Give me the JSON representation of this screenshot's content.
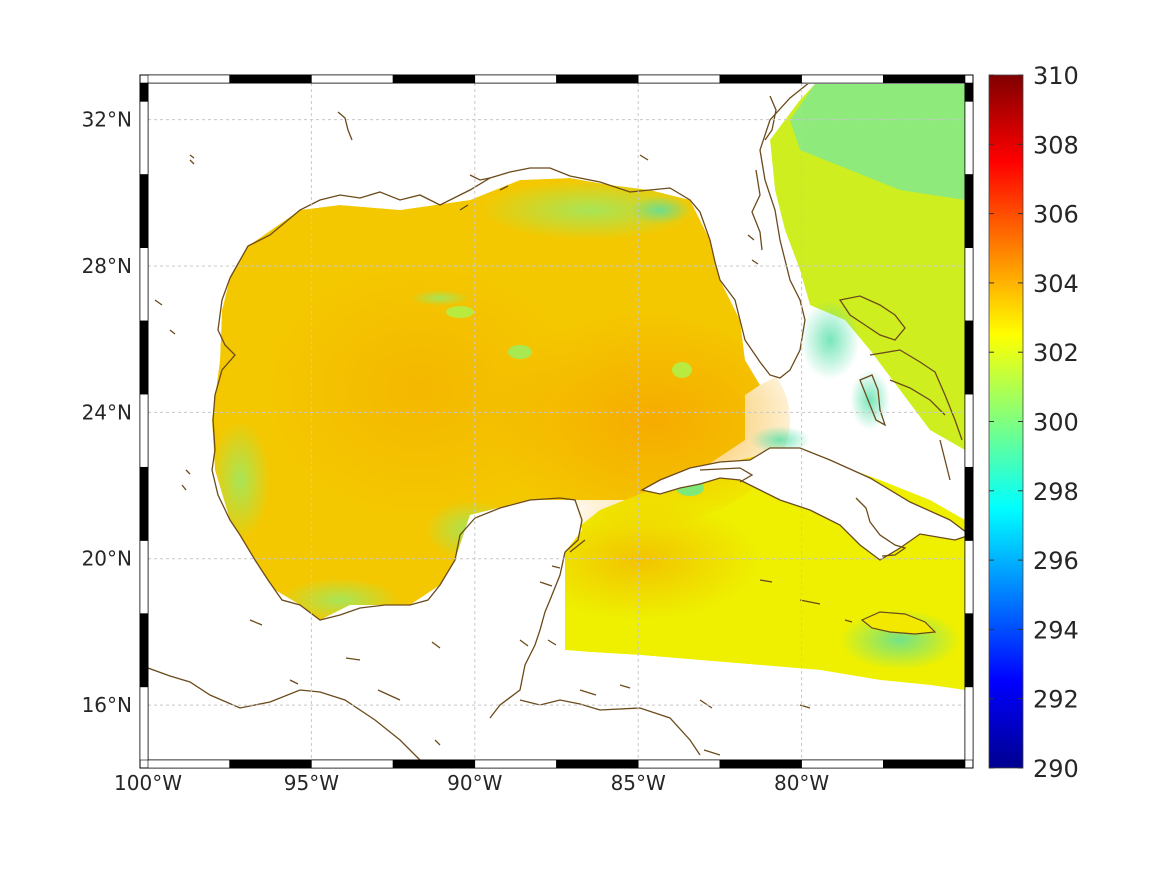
{
  "map": {
    "lat_labels": [
      {
        "lat": 32,
        "label": "32°N"
      },
      {
        "lat": 28,
        "label": "28°N"
      },
      {
        "lat": 24,
        "label": "24°N"
      },
      {
        "lat": 20,
        "label": "20°N"
      },
      {
        "lat": 16,
        "label": "16°N"
      }
    ],
    "lon_labels": [
      {
        "lon": -100,
        "label": "100°W"
      },
      {
        "lon": -95,
        "label": "95°W"
      },
      {
        "lon": -90,
        "label": "90°W"
      },
      {
        "lon": -85,
        "label": "85°W"
      },
      {
        "lon": -80,
        "label": "80°W"
      }
    ],
    "extent": {
      "lon_min": -100,
      "lon_max": -75,
      "lat_min": 14.5,
      "lat_max": 33
    },
    "grid": true,
    "coast_color": "#6b4a1b",
    "colorbar": {
      "ticks": [
        "310",
        "308",
        "306",
        "304",
        "302",
        "300",
        "298",
        "296",
        "294",
        "292",
        "290"
      ],
      "min": 290,
      "max": 310,
      "colormap": "jet"
    }
  }
}
